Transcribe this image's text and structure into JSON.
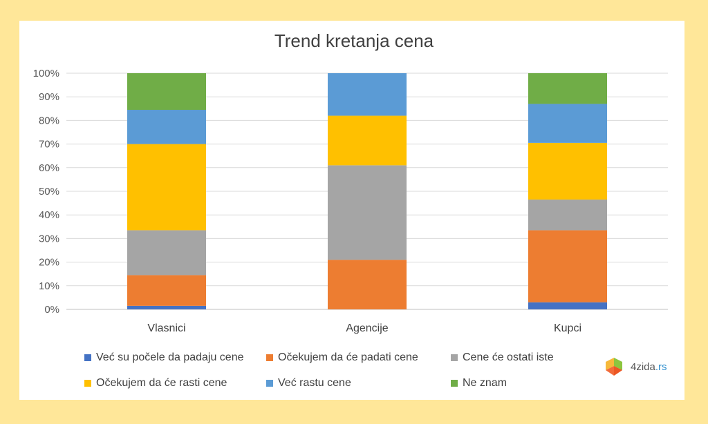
{
  "chart_data": {
    "type": "bar",
    "stacked": true,
    "normalized": true,
    "title": "Trend kretanja cena",
    "categories": [
      "Vlasnici",
      "Agencije",
      "Kupci"
    ],
    "ylim": [
      0,
      100
    ],
    "yticks": [
      "0%",
      "10%",
      "20%",
      "30%",
      "40%",
      "50%",
      "60%",
      "70%",
      "80%",
      "90%",
      "100%"
    ],
    "grid": true,
    "legend_position": "bottom",
    "series": [
      {
        "name": "Već su počele da padaju cene",
        "color": "#4472c4",
        "values": [
          1.5,
          0,
          3
        ]
      },
      {
        "name": "Očekujem da će padati cene",
        "color": "#ed7d31",
        "values": [
          13,
          21,
          30.5
        ]
      },
      {
        "name": "Cene će ostati iste",
        "color": "#a5a5a5",
        "values": [
          19,
          40,
          13
        ]
      },
      {
        "name": "Očekujem da će rasti cene",
        "color": "#ffc000",
        "values": [
          36.5,
          21,
          24
        ]
      },
      {
        "name": "Već rastu cene",
        "color": "#5b9bd5",
        "values": [
          14.5,
          18,
          16.5
        ]
      },
      {
        "name": "Ne znam",
        "color": "#70ad47",
        "values": [
          15.5,
          0,
          13
        ]
      }
    ]
  },
  "logo": {
    "name": "4zida",
    "tld": ".rs"
  }
}
